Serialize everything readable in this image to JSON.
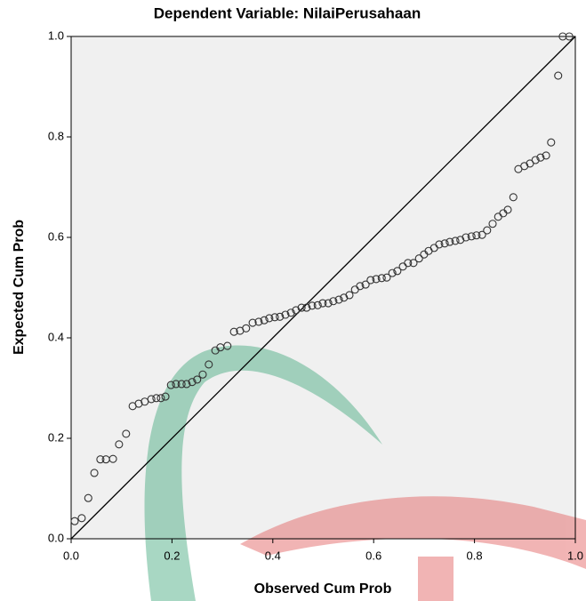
{
  "chart_data": {
    "type": "scatter",
    "title": "Dependent Variable: NilaiPerusahaan",
    "x_label": "Observed Cum Prob",
    "y_label": "Expected Cum Prob",
    "xlim": [
      0,
      1
    ],
    "ylim": [
      0,
      1
    ],
    "xticks": [
      {
        "value": 0,
        "label": "0.0"
      },
      0.2,
      0.4,
      0.6,
      0.8,
      {
        "value": 1,
        "label": "1.0"
      }
    ],
    "yticks": [
      {
        "value": 0,
        "label": "0.0"
      },
      0.2,
      0.4,
      0.6,
      0.8,
      {
        "value": 1,
        "label": "1.0"
      }
    ],
    "reference_line": {
      "x": [
        0,
        1
      ],
      "y": [
        0,
        1
      ]
    },
    "series": [
      {
        "x": [
          0.007,
          0.021,
          0.034,
          0.046,
          0.058,
          0.069,
          0.083,
          0.095,
          0.109,
          0.122,
          0.134,
          0.146,
          0.159,
          0.169,
          0.178,
          0.187,
          0.198,
          0.208,
          0.219,
          0.229,
          0.24,
          0.25,
          0.261,
          0.273,
          0.286,
          0.296,
          0.31,
          0.323,
          0.335,
          0.347,
          0.36,
          0.372,
          0.383,
          0.393,
          0.404,
          0.414,
          0.425,
          0.436,
          0.446,
          0.457,
          0.467,
          0.478,
          0.489,
          0.499,
          0.51,
          0.52,
          0.531,
          0.541,
          0.552,
          0.563,
          0.573,
          0.584,
          0.594,
          0.605,
          0.616,
          0.626,
          0.637,
          0.647,
          0.658,
          0.668,
          0.679,
          0.69,
          0.7,
          0.709,
          0.72,
          0.73,
          0.741,
          0.751,
          0.762,
          0.772,
          0.783,
          0.794,
          0.804,
          0.815,
          0.825,
          0.836,
          0.847,
          0.857,
          0.866,
          0.877,
          0.887,
          0.899,
          0.91,
          0.921,
          0.931,
          0.942,
          0.952,
          0.966,
          0.975,
          0.988
        ],
        "values": [
          0.035,
          0.041,
          0.081,
          0.131,
          0.158,
          0.158,
          0.159,
          0.188,
          0.209,
          0.264,
          0.269,
          0.273,
          0.278,
          0.28,
          0.28,
          0.283,
          0.306,
          0.308,
          0.308,
          0.308,
          0.312,
          0.317,
          0.327,
          0.347,
          0.375,
          0.381,
          0.384,
          0.412,
          0.414,
          0.419,
          0.43,
          0.432,
          0.435,
          0.439,
          0.441,
          0.442,
          0.446,
          0.45,
          0.455,
          0.46,
          0.46,
          0.464,
          0.465,
          0.469,
          0.469,
          0.473,
          0.476,
          0.48,
          0.485,
          0.496,
          0.503,
          0.506,
          0.515,
          0.517,
          0.519,
          0.52,
          0.529,
          0.533,
          0.542,
          0.549,
          0.549,
          0.558,
          0.566,
          0.573,
          0.579,
          0.586,
          0.588,
          0.591,
          0.593,
          0.595,
          0.6,
          0.602,
          0.604,
          0.605,
          0.614,
          0.627,
          0.641,
          0.648,
          0.655,
          0.68,
          0.736,
          0.742,
          0.747,
          0.754,
          0.759,
          0.763,
          0.789,
          0.922,
          1.0,
          1.0
        ],
        "color": "#333333"
      }
    ]
  }
}
